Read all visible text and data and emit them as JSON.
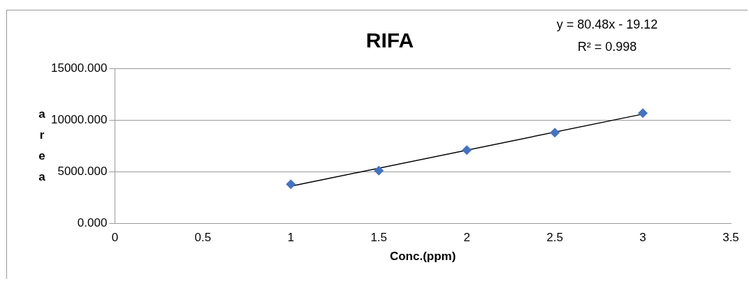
{
  "chart_data": {
    "type": "scatter",
    "title": "RIFA",
    "xlabel": "Conc.(ppm)",
    "ylabel": "area",
    "annotations": [
      "y = 80.48x - 19.12",
      "R² = 0.998"
    ],
    "series": [
      {
        "color": "#4472c4",
        "x": [
          1,
          1.5,
          2,
          2.5,
          3
        ],
        "values": [
          3770,
          5100,
          7080,
          8770,
          10660
        ],
        "marker": "diamond"
      },
      {
        "type": "line",
        "color": "#000000",
        "x": [
          1,
          3
        ],
        "values": [
          3590,
          10570
        ],
        "marker": "none",
        "line_style": "solid"
      }
    ],
    "xlim": [
      0,
      3.5
    ],
    "xticks": [
      0,
      0.5,
      1,
      1.5,
      2,
      2.5,
      3,
      3.5
    ],
    "ylim": [
      0,
      15000
    ],
    "yticks": [
      {
        "value": 0,
        "label": "0.000"
      },
      {
        "value": 5000,
        "label": "5000.000"
      },
      {
        "value": 10000,
        "label": "10000.000"
      },
      {
        "value": 15000,
        "label": "15000.000"
      }
    ],
    "grid": "y",
    "legend": false
  }
}
